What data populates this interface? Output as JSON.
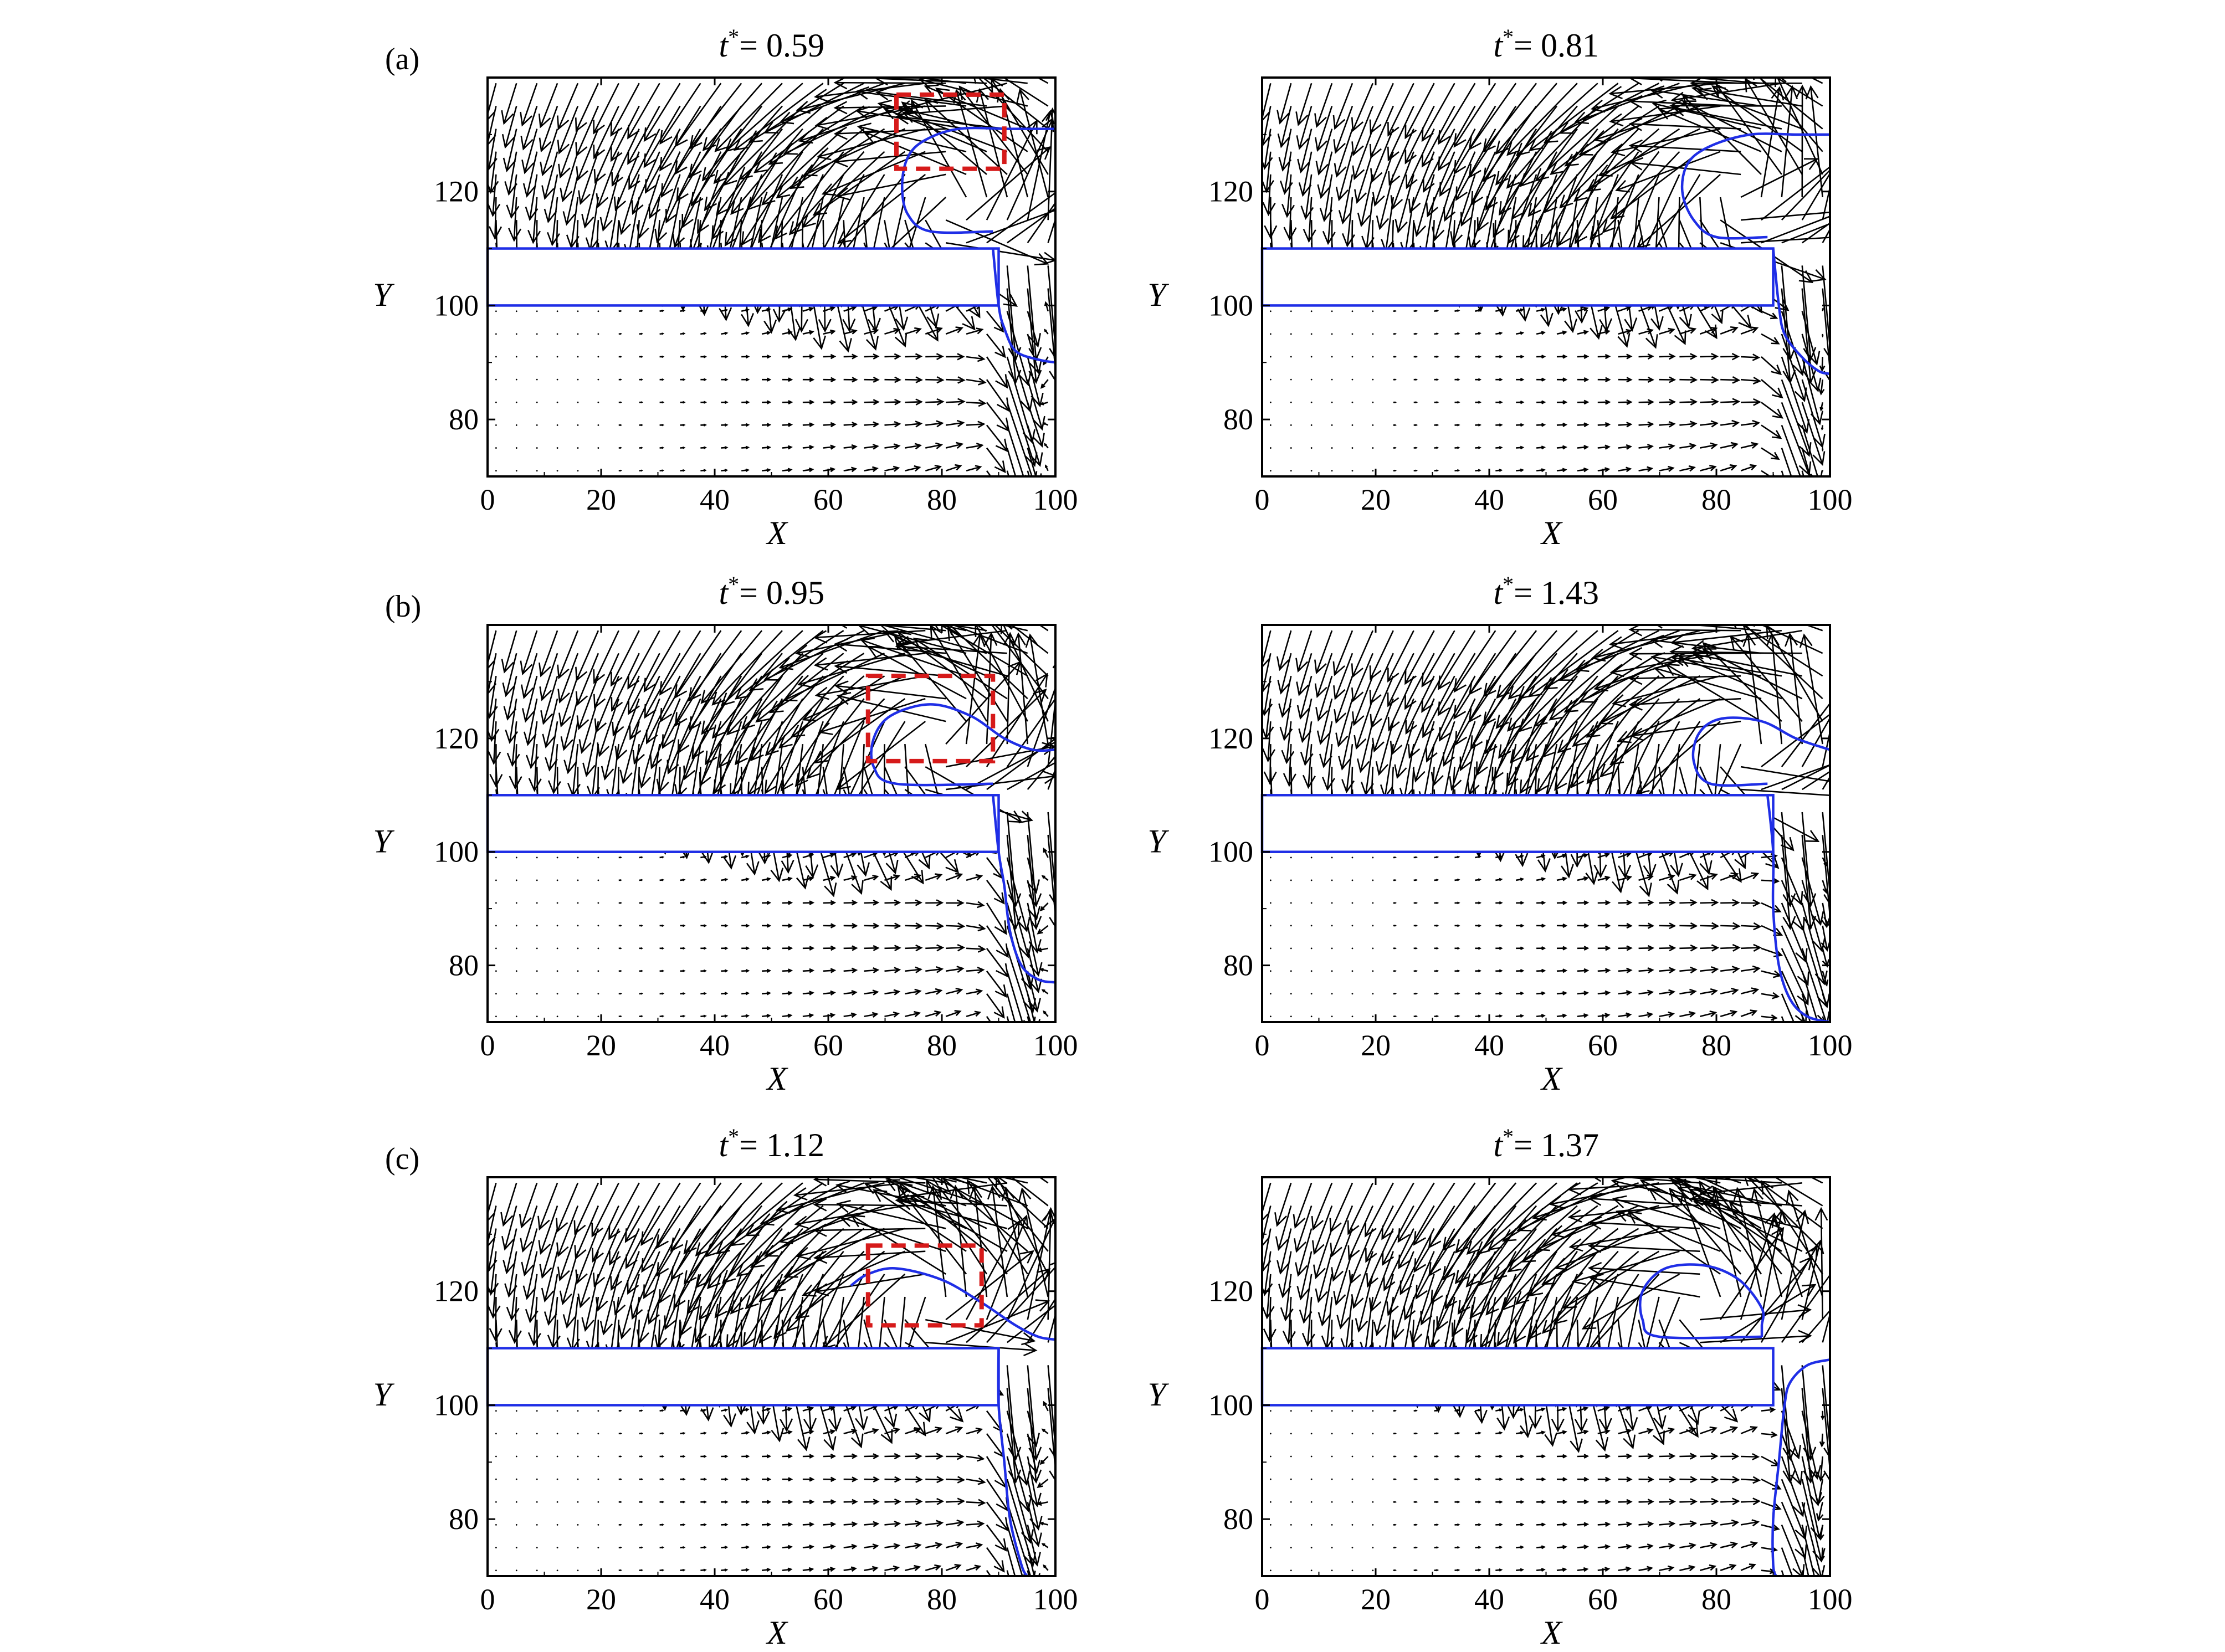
{
  "colors": {
    "interface": "#1f2ee6",
    "highlight_box": "#d61a1a",
    "vectors": "#000000"
  },
  "chart_data": [
    {
      "type": "quiver",
      "row_label": "(a)",
      "title_var": "t",
      "title_sup": "*",
      "title_value": "= 0.59",
      "xlabel": "X",
      "ylabel": "Y",
      "xlim": [
        0,
        100
      ],
      "ylim": [
        70,
        140
      ],
      "xticks": [
        "0",
        "20",
        "40",
        "60",
        "80",
        "100"
      ],
      "yticks": [
        "80",
        "100",
        "120"
      ],
      "plate": {
        "x": [
          0,
          90
        ],
        "y": [
          100,
          110
        ]
      },
      "box": {
        "x": [
          72,
          91
        ],
        "y": [
          124,
          137
        ]
      },
      "interface_upper": [
        [
          89,
          113
        ],
        [
          78,
          113
        ],
        [
          74,
          116
        ],
        [
          73,
          121
        ],
        [
          74,
          126
        ],
        [
          77,
          129
        ],
        [
          83,
          131
        ],
        [
          92,
          131
        ],
        [
          100,
          131
        ]
      ],
      "interface_lower": [
        [
          89,
          110
        ],
        [
          90,
          100
        ],
        [
          91,
          96
        ],
        [
          93,
          92
        ],
        [
          97,
          90.5
        ],
        [
          100,
          90
        ]
      ],
      "vortex": {
        "cx": 82,
        "cy": 118,
        "sink_x": 97,
        "shear_x": 92
      }
    },
    {
      "type": "quiver",
      "row_label": "",
      "title_var": "t",
      "title_sup": "*",
      "title_value": "= 0.81",
      "xlabel": "X",
      "ylabel": "Y",
      "xlim": [
        0,
        100
      ],
      "ylim": [
        70,
        140
      ],
      "xticks": [
        "0",
        "20",
        "40",
        "60",
        "80",
        "100"
      ],
      "yticks": [
        "80",
        "100",
        "120"
      ],
      "plate": {
        "x": [
          0,
          90
        ],
        "y": [
          100,
          110
        ]
      },
      "box": null,
      "interface_upper": [
        [
          89,
          112
        ],
        [
          80,
          112
        ],
        [
          76,
          115
        ],
        [
          74,
          120
        ],
        [
          75,
          125
        ],
        [
          79,
          128
        ],
        [
          86,
          130
        ],
        [
          94,
          130
        ],
        [
          100,
          130
        ]
      ],
      "interface_lower": [
        [
          90,
          110
        ],
        [
          91,
          100
        ],
        [
          92,
          95
        ],
        [
          95,
          91
        ],
        [
          98,
          88.5
        ],
        [
          100,
          88
        ]
      ],
      "vortex": {
        "cx": 84,
        "cy": 120,
        "sink_x": 98,
        "shear_x": 93
      }
    },
    {
      "type": "quiver",
      "row_label": "(b)",
      "title_var": "t",
      "title_sup": "*",
      "title_value": "= 0.95",
      "xlabel": "X",
      "ylabel": "Y",
      "xlim": [
        0,
        100
      ],
      "ylim": [
        70,
        140
      ],
      "xticks": [
        "0",
        "20",
        "40",
        "60",
        "80",
        "100"
      ],
      "yticks": [
        "80",
        "100",
        "120"
      ],
      "plate": {
        "x": [
          0,
          90
        ],
        "y": [
          100,
          110
        ]
      },
      "box": {
        "x": [
          67,
          89
        ],
        "y": [
          116,
          131
        ]
      },
      "interface_upper": [
        [
          89,
          112
        ],
        [
          72,
          112
        ],
        [
          68,
          115
        ],
        [
          68,
          120
        ],
        [
          71,
          124
        ],
        [
          78,
          126
        ],
        [
          85,
          124
        ],
        [
          91,
          120
        ],
        [
          96,
          118
        ],
        [
          100,
          118
        ]
      ],
      "interface_lower": [
        [
          89,
          110
        ],
        [
          90,
          100
        ],
        [
          91,
          94
        ],
        [
          92,
          86
        ],
        [
          94,
          80
        ],
        [
          97,
          77.5
        ],
        [
          100,
          77
        ]
      ],
      "vortex": {
        "cx": 80,
        "cy": 120,
        "sink_x": 96,
        "shear_x": 92
      }
    },
    {
      "type": "quiver",
      "row_label": "",
      "title_var": "t",
      "title_sup": "*",
      "title_value": "= 1.43",
      "xlabel": "X",
      "ylabel": "Y",
      "xlim": [
        0,
        100
      ],
      "ylim": [
        70,
        140
      ],
      "xticks": [
        "0",
        "20",
        "40",
        "60",
        "80",
        "100"
      ],
      "yticks": [
        "80",
        "100",
        "120"
      ],
      "plate": {
        "x": [
          0,
          90
        ],
        "y": [
          100,
          110
        ]
      },
      "box": null,
      "interface_upper": [
        [
          89,
          112
        ],
        [
          79,
          112
        ],
        [
          76,
          116
        ],
        [
          77,
          121
        ],
        [
          81,
          123.5
        ],
        [
          88,
          123
        ],
        [
          94,
          120
        ],
        [
          100,
          118
        ]
      ],
      "interface_lower": [
        [
          89,
          110
        ],
        [
          90,
          100
        ],
        [
          90,
          90
        ],
        [
          91,
          80
        ],
        [
          93,
          74
        ],
        [
          96,
          71
        ],
        [
          100,
          70
        ]
      ],
      "vortex": {
        "cx": 85,
        "cy": 119,
        "sink_x": 99,
        "shear_x": 94
      }
    },
    {
      "type": "quiver",
      "row_label": "(c)",
      "title_var": "t",
      "title_sup": "*",
      "title_value": "= 1.12",
      "xlabel": "X",
      "ylabel": "Y",
      "xlim": [
        0,
        100
      ],
      "ylim": [
        70,
        140
      ],
      "xticks": [
        "0",
        "20",
        "40",
        "60",
        "80",
        "100"
      ],
      "yticks": [
        "80",
        "100",
        "120"
      ],
      "plate": {
        "x": [
          0,
          90
        ],
        "y": [
          100,
          110
        ]
      },
      "box": {
        "x": [
          67,
          87
        ],
        "y": [
          114,
          128
        ]
      },
      "interface_upper": [
        [
          64,
          121
        ],
        [
          67,
          123
        ],
        [
          72,
          124
        ],
        [
          80,
          122
        ],
        [
          87,
          118
        ],
        [
          93,
          114
        ],
        [
          97,
          112
        ],
        [
          100,
          111.5
        ]
      ],
      "interface_lower": [
        [
          90,
          110
        ],
        [
          90,
          100
        ],
        [
          91,
          90
        ],
        [
          92,
          80
        ],
        [
          94,
          72
        ],
        [
          95,
          70
        ]
      ],
      "vortex": {
        "cx": 78,
        "cy": 119,
        "sink_x": 96,
        "shear_x": 92
      }
    },
    {
      "type": "quiver",
      "row_label": "",
      "title_var": "t",
      "title_sup": "*",
      "title_value": "= 1.37",
      "xlabel": "X",
      "ylabel": "Y",
      "xlim": [
        0,
        100
      ],
      "ylim": [
        70,
        140
      ],
      "xticks": [
        "0",
        "20",
        "40",
        "60",
        "80",
        "100"
      ],
      "yticks": [
        "80",
        "100",
        "120"
      ],
      "plate": {
        "x": [
          0,
          90
        ],
        "y": [
          100,
          110
        ]
      },
      "box": null,
      "interface_upper": [
        [
          88,
          112
        ],
        [
          70,
          112
        ],
        [
          67,
          115
        ],
        [
          67,
          120
        ],
        [
          71,
          124
        ],
        [
          78,
          124.5
        ],
        [
          84,
          122
        ],
        [
          88,
          117
        ],
        [
          88,
          114
        ],
        [
          88,
          112
        ]
      ],
      "interface_lower": [
        [
          100,
          108
        ],
        [
          96,
          107
        ],
        [
          93,
          104
        ],
        [
          92,
          100
        ],
        [
          91,
          90
        ],
        [
          90,
          80
        ],
        [
          90,
          72
        ],
        [
          90.5,
          70
        ]
      ],
      "vortex": {
        "cx": 77,
        "cy": 118,
        "sink_x": 97,
        "shear_x": 94
      }
    }
  ]
}
